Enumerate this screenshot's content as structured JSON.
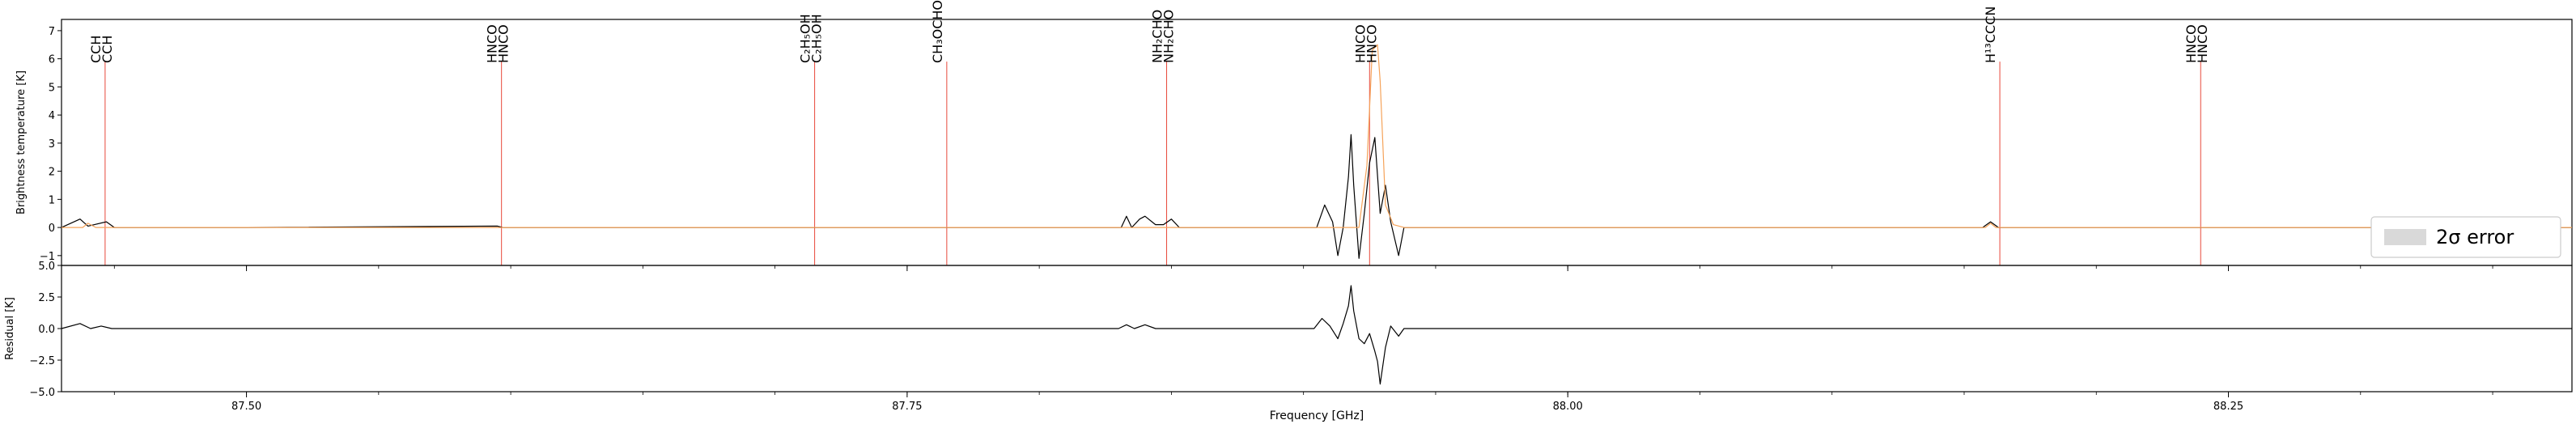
{
  "chart_data": {
    "type": "line",
    "xlabel": "Frequency [GHz]",
    "xlim": [
      87.43,
      88.38
    ],
    "xticks": [
      {
        "value": 87.5,
        "label": "87.50"
      },
      {
        "value": 87.75,
        "label": "87.75"
      },
      {
        "value": 88.0,
        "label": "88.00"
      },
      {
        "value": 88.25,
        "label": "88.25"
      }
    ],
    "panels": [
      {
        "ylabel": "Brightness temperature [K]",
        "ylim": [
          -1.35,
          7.4
        ],
        "yticks": [
          {
            "value": 7,
            "label": "7"
          },
          {
            "value": 6,
            "label": "6"
          },
          {
            "value": 5,
            "label": "5"
          },
          {
            "value": 4,
            "label": "4"
          },
          {
            "value": 3,
            "label": "3"
          },
          {
            "value": 2,
            "label": "2"
          },
          {
            "value": 1,
            "label": "1"
          },
          {
            "value": 0,
            "label": "0"
          },
          {
            "value": -1,
            "label": "−1"
          }
        ],
        "legend": {
          "placement": "lower-right",
          "entries": [
            "2σ error"
          ]
        },
        "series": [
          {
            "name": "observed",
            "color": "#000000",
            "points": [
              [
                87.43,
                0.0
              ],
              [
                87.437,
                0.3
              ],
              [
                87.44,
                0.05
              ],
              [
                87.447,
                0.2
              ],
              [
                87.45,
                0.0
              ],
              [
                87.5,
                0.0
              ],
              [
                87.595,
                0.05
              ],
              [
                87.597,
                0.0
              ],
              [
                87.71,
                0.0
              ],
              [
                87.76,
                0.0
              ],
              [
                87.831,
                0.0
              ],
              [
                87.833,
                0.4
              ],
              [
                87.835,
                0.0
              ],
              [
                87.838,
                0.3
              ],
              [
                87.84,
                0.4
              ],
              [
                87.844,
                0.1
              ],
              [
                87.847,
                0.1
              ],
              [
                87.85,
                0.3
              ],
              [
                87.853,
                0.0
              ],
              [
                87.9,
                0.0
              ],
              [
                87.905,
                0.0
              ],
              [
                87.908,
                0.8
              ],
              [
                87.911,
                0.2
              ],
              [
                87.913,
                -1.0
              ],
              [
                87.915,
                0.0
              ],
              [
                87.917,
                1.8
              ],
              [
                87.918,
                3.3
              ],
              [
                87.919,
                1.5
              ],
              [
                87.921,
                -1.1
              ],
              [
                87.923,
                0.5
              ],
              [
                87.925,
                2.3
              ],
              [
                87.927,
                3.2
              ],
              [
                87.929,
                0.5
              ],
              [
                87.931,
                1.5
              ],
              [
                87.933,
                0.2
              ],
              [
                87.936,
                -1.0
              ],
              [
                87.938,
                0.0
              ],
              [
                87.98,
                0.0
              ],
              [
                88.157,
                0.0
              ],
              [
                88.16,
                0.2
              ],
              [
                88.163,
                0.0
              ],
              [
                88.23,
                0.0
              ],
              [
                88.38,
                0.0
              ]
            ]
          },
          {
            "name": "model",
            "color": "#f5a35a",
            "points": [
              [
                87.43,
                0.0
              ],
              [
                87.438,
                0.0
              ],
              [
                87.44,
                0.15
              ],
              [
                87.443,
                0.0
              ],
              [
                87.921,
                0.0
              ],
              [
                87.924,
                2.2
              ],
              [
                87.926,
                6.3
              ],
              [
                87.928,
                6.5
              ],
              [
                87.929,
                5.2
              ],
              [
                87.931,
                0.8
              ],
              [
                87.934,
                0.1
              ],
              [
                87.938,
                0.0
              ],
              [
                88.158,
                0.0
              ],
              [
                88.16,
                0.15
              ],
              [
                88.162,
                0.0
              ],
              [
                88.38,
                0.0
              ]
            ]
          }
        ]
      },
      {
        "ylabel": "Residual [K]",
        "ylim": [
          -5.0,
          5.0
        ],
        "yticks": [
          {
            "value": 5,
            "label": "5.0"
          },
          {
            "value": 2.5,
            "label": "2.5"
          },
          {
            "value": 0,
            "label": "0.0"
          },
          {
            "value": -2.5,
            "label": "−2.5"
          },
          {
            "value": -5,
            "label": "−5.0"
          }
        ],
        "series": [
          {
            "name": "residual",
            "color": "#000000",
            "points": [
              [
                87.43,
                0.0
              ],
              [
                87.437,
                0.4
              ],
              [
                87.441,
                0.0
              ],
              [
                87.445,
                0.2
              ],
              [
                87.449,
                0.0
              ],
              [
                87.83,
                0.0
              ],
              [
                87.833,
                0.3
              ],
              [
                87.836,
                0.0
              ],
              [
                87.84,
                0.3
              ],
              [
                87.844,
                0.0
              ],
              [
                87.904,
                0.0
              ],
              [
                87.907,
                0.8
              ],
              [
                87.91,
                0.2
              ],
              [
                87.913,
                -0.8
              ],
              [
                87.915,
                0.4
              ],
              [
                87.917,
                1.8
              ],
              [
                87.918,
                3.4
              ],
              [
                87.919,
                1.4
              ],
              [
                87.921,
                -0.8
              ],
              [
                87.923,
                -1.2
              ],
              [
                87.925,
                -0.4
              ],
              [
                87.927,
                -1.8
              ],
              [
                87.928,
                -2.6
              ],
              [
                87.929,
                -4.4
              ],
              [
                87.931,
                -1.5
              ],
              [
                87.933,
                0.2
              ],
              [
                87.936,
                -0.6
              ],
              [
                87.938,
                0.0
              ],
              [
                88.38,
                0.0
              ]
            ]
          }
        ]
      }
    ],
    "lines": [
      {
        "freq": 87.4465,
        "labels": [
          "CCH",
          "CCH"
        ]
      },
      {
        "freq": 87.5965,
        "labels": [
          "HNCO",
          "HNCO"
        ]
      },
      {
        "freq": 87.715,
        "labels": [
          "C₂H₅OH",
          "C₂H₅OH"
        ]
      },
      {
        "freq": 87.765,
        "labels": [
          "CH₃OCHO"
        ]
      },
      {
        "freq": 87.8482,
        "labels": [
          "NH₂CHO",
          "NH₂CHO"
        ]
      },
      {
        "freq": 87.925,
        "labels": [
          "HNCO",
          "HNCO"
        ]
      },
      {
        "freq": 88.1635,
        "labels": [
          "H¹³CCCN"
        ]
      },
      {
        "freq": 88.2395,
        "labels": [
          "HNCO",
          "HNCO"
        ]
      }
    ],
    "colors": {
      "observed": "#000000",
      "model": "#f5a35a",
      "line_marker": "#e8483a",
      "error_band": "#d9d9d9"
    }
  }
}
